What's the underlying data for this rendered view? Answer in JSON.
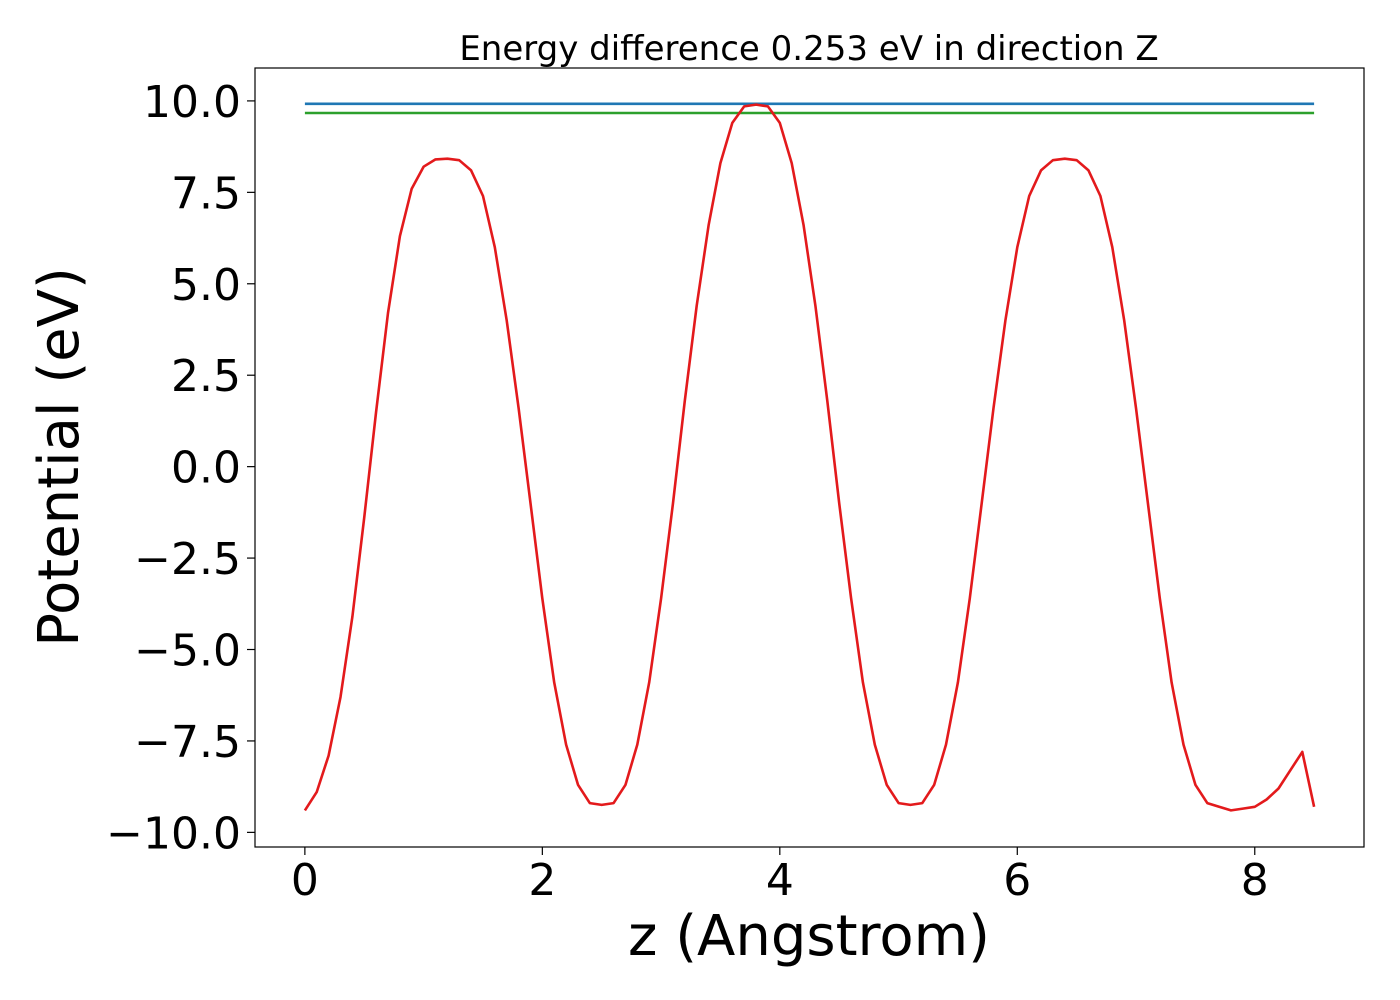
{
  "chart_data": {
    "type": "line",
    "title": "Energy difference 0.253 eV in direction Z",
    "xlabel": "z (Angstrom)",
    "ylabel": "Potential (eV)",
    "xlim": [
      -0.42,
      8.92
    ],
    "ylim": [
      -10.4,
      10.9
    ],
    "xticks": [
      0,
      2,
      4,
      6,
      8
    ],
    "xtick_labels": [
      "0",
      "2",
      "4",
      "6",
      "8"
    ],
    "yticks": [
      -10,
      -7.5,
      -5,
      -2.5,
      0,
      2.5,
      5,
      7.5,
      10
    ],
    "ytick_labels": [
      "−10.0",
      "−7.5",
      "−5.0",
      "−2.5",
      "0.0",
      "2.5",
      "5.0",
      "7.5",
      "10.0"
    ],
    "grid": false,
    "series": [
      {
        "color": "#1f77b4",
        "kind": "hline",
        "x": [
          0,
          8.5
        ],
        "y": [
          9.92,
          9.92
        ]
      },
      {
        "color": "#2ca02c",
        "kind": "hline",
        "x": [
          0,
          8.5
        ],
        "y": [
          9.67,
          9.67
        ]
      },
      {
        "color": "#e31a1c",
        "kind": "curve",
        "x": [
          0,
          0.1,
          0.2,
          0.3,
          0.4,
          0.5,
          0.6,
          0.7,
          0.8,
          0.9,
          1.0,
          1.1,
          1.2,
          1.3,
          1.4,
          1.5,
          1.6,
          1.7,
          1.8,
          1.9,
          2.0,
          2.1,
          2.2,
          2.3,
          2.4,
          2.5,
          2.6,
          2.7,
          2.8,
          2.9,
          3.0,
          3.1,
          3.2,
          3.3,
          3.4,
          3.5,
          3.6,
          3.7,
          3.8,
          3.9,
          4.0,
          4.1,
          4.2,
          4.3,
          4.4,
          4.5,
          4.6,
          4.7,
          4.8,
          4.9,
          5.0,
          5.1,
          5.2,
          5.3,
          5.4,
          5.5,
          5.6,
          5.7,
          5.8,
          5.9,
          6.0,
          6.1,
          6.2,
          6.3,
          6.4,
          6.5,
          6.6,
          6.7,
          6.8,
          6.9,
          7.0,
          7.1,
          7.2,
          7.3,
          7.4,
          7.5,
          7.6,
          7.7,
          7.8,
          7.9,
          8.0,
          8.1,
          8.2,
          8.3,
          8.4,
          8.5
        ],
        "y": [
          -9.4,
          -8.9,
          -7.9,
          -6.3,
          -4.1,
          -1.4,
          1.5,
          4.2,
          6.3,
          7.6,
          8.2,
          8.4,
          8.42,
          8.38,
          8.1,
          7.4,
          6.0,
          4.0,
          1.6,
          -1.0,
          -3.6,
          -5.9,
          -7.6,
          -8.7,
          -9.2,
          -9.25,
          -9.2,
          -8.7,
          -7.6,
          -5.9,
          -3.6,
          -1.0,
          1.8,
          4.4,
          6.6,
          8.3,
          9.4,
          9.85,
          9.9,
          9.85,
          9.4,
          8.3,
          6.6,
          4.4,
          1.8,
          -1.0,
          -3.6,
          -5.9,
          -7.6,
          -8.7,
          -9.2,
          -9.25,
          -9.2,
          -8.7,
          -7.6,
          -5.9,
          -3.6,
          -1.0,
          1.6,
          4.0,
          6.0,
          7.4,
          8.1,
          8.38,
          8.42,
          8.38,
          8.1,
          7.4,
          6.0,
          4.0,
          1.6,
          -1.0,
          -3.6,
          -5.9,
          -7.6,
          -8.7,
          -9.2,
          -9.3,
          -9.4,
          -9.35,
          -9.3,
          -9.1,
          -8.8,
          -8.3,
          -7.8,
          -9.3
        ]
      }
    ]
  }
}
